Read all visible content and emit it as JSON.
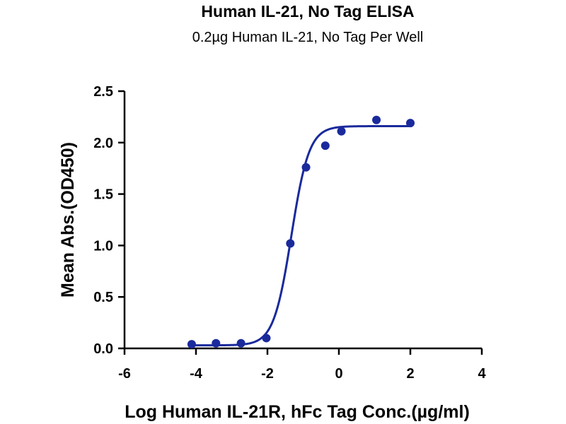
{
  "chart_data": {
    "type": "scatter",
    "title": "Human IL-21, No Tag ELISA",
    "subtitle": "0.2µg Human IL-21, No Tag Per Well",
    "xlabel": "Log Human IL-21R, hFc Tag Conc.(µg/ml)",
    "ylabel": "Mean Abs.(OD450)",
    "xlim": [
      -6,
      4
    ],
    "ylim": [
      0,
      2.5
    ],
    "x_ticks": [
      "-6",
      "-4",
      "-2",
      "0",
      "2",
      "4"
    ],
    "y_ticks": [
      "0.0",
      "0.5",
      "1.0",
      "1.5",
      "2.0",
      "2.5"
    ],
    "grid": false,
    "colors": {
      "series": "#1a2a9c",
      "axis": "#000000"
    },
    "series": [
      {
        "points": [
          {
            "x": -4.12,
            "y": 0.04
          },
          {
            "x": -3.44,
            "y": 0.05
          },
          {
            "x": -2.74,
            "y": 0.05
          },
          {
            "x": -2.03,
            "y": 0.1
          },
          {
            "x": -1.36,
            "y": 1.02
          },
          {
            "x": -0.92,
            "y": 1.76
          },
          {
            "x": -0.38,
            "y": 1.97
          },
          {
            "x": 0.07,
            "y": 2.11
          },
          {
            "x": 1.05,
            "y": 2.22
          },
          {
            "x": 2.0,
            "y": 2.19
          }
        ],
        "fit": {
          "model": "4PL",
          "bottom": 0.03,
          "top": 2.16,
          "log_ec50": -1.33,
          "hill_slope": 1.75,
          "x_range": [
            -4.12,
            2.0
          ]
        }
      }
    ]
  }
}
